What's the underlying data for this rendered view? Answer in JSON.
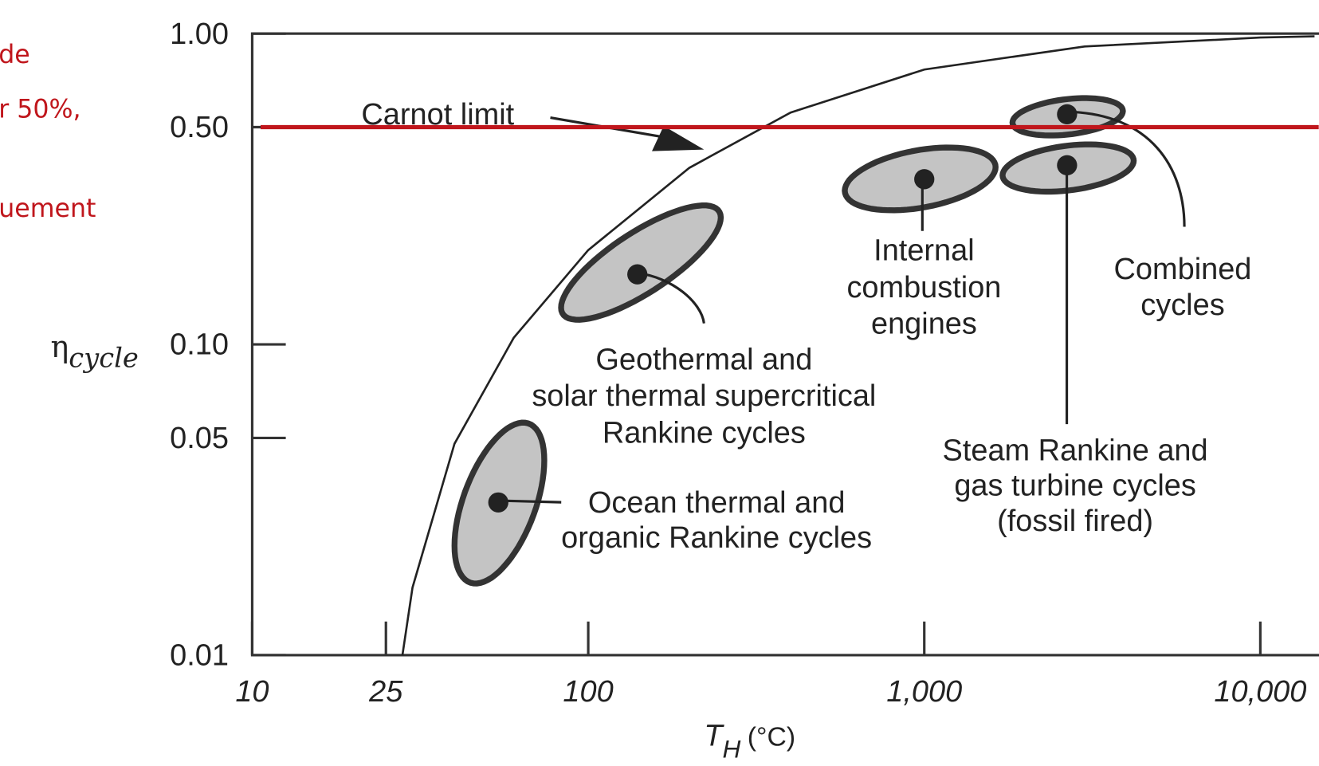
{
  "side_text": [
    "de",
    "r 50%,",
    "uement"
  ],
  "chart_data": {
    "type": "scatter",
    "log_x": true,
    "log_y": true,
    "xlabel": {
      "symbol": "T",
      "subscript": "H",
      "unit": "(°C)"
    },
    "ylabel": {
      "symbol": "η",
      "subscript": "cycle"
    },
    "xlim": [
      10,
      14500
    ],
    "ylim": [
      0.01,
      1
    ],
    "xticks": [
      10,
      25,
      100,
      {
        "value": 1000,
        "label": "1,000"
      },
      {
        "value": 10000,
        "label": "10,000"
      }
    ],
    "yticks": [
      {
        "value": 0.01,
        "label": "0.01"
      },
      {
        "value": 0.05,
        "label": "0.05"
      },
      {
        "value": 0.1,
        "label": "0.10"
      },
      {
        "value": 0.5,
        "label": "0.50"
      },
      {
        "value": 1,
        "label": "1.00"
      }
    ],
    "series": [
      {
        "name": "Carnot limit",
        "color": "#222222",
        "x": [
          28,
          30,
          40,
          60,
          100,
          200,
          400,
          1000,
          3000,
          10000,
          14500
        ],
        "values": [
          0.01,
          0.0165,
          0.0479,
          0.105,
          0.201,
          0.37,
          0.557,
          0.766,
          0.909,
          0.971,
          0.98
        ]
      }
    ],
    "regions": [
      {
        "label": [
          "Ocean thermal and",
          "organic Rankine cycles"
        ],
        "x": 54,
        "y": 0.031,
        "x_range": [
          40,
          74
        ],
        "y_range": [
          0.017,
          0.056
        ]
      },
      {
        "label": [
          "Geothermal and",
          "solar thermal supercritical",
          "Rankine cycles"
        ],
        "x": 140,
        "y": 0.168,
        "x_range": [
          83,
          248
        ],
        "y_range": [
          0.12,
          0.28
        ]
      },
      {
        "label": [
          "Internal",
          "combustion",
          "engines"
        ],
        "x": 1000,
        "y": 0.34,
        "x_range": [
          580,
          1630
        ],
        "y_range": [
          0.27,
          0.43
        ]
      },
      {
        "label": [
          "Steam Rankine and",
          "gas turbine cycles",
          "(fossil fired)"
        ],
        "x": 2660,
        "y": 0.377,
        "x_range": [
          1710,
          4200
        ],
        "y_range": [
          0.31,
          0.44
        ]
      },
      {
        "label": [
          "Combined",
          "cycles"
        ],
        "x": 2660,
        "y": 0.55,
        "x_range": [
          1830,
          3900
        ],
        "y_range": [
          0.47,
          0.62
        ]
      }
    ],
    "fill_color": "#c4c4c4",
    "reference_line": {
      "value": 0.5,
      "color": "#c0161c"
    }
  }
}
